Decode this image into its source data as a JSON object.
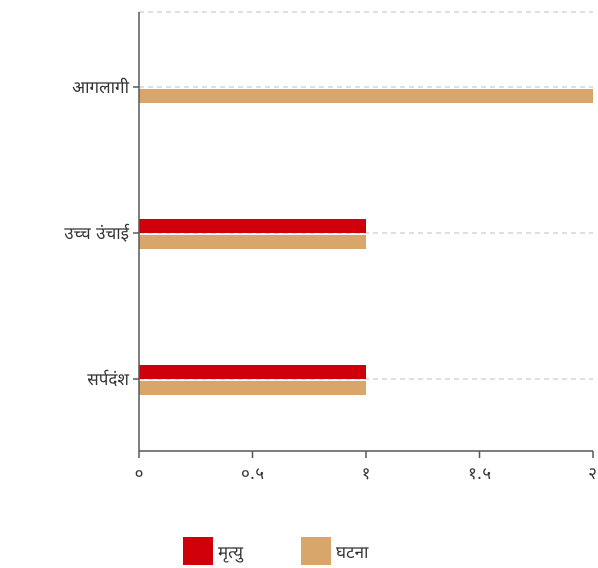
{
  "chart_data": {
    "type": "bar",
    "orientation": "horizontal",
    "categories": [
      "आगलागी",
      "उच्च उंचाई",
      "सर्पदंश"
    ],
    "series": [
      {
        "name": "मृत्यु",
        "values": [
          0,
          1,
          1
        ],
        "color": "#d0000b"
      },
      {
        "name": "घटना",
        "values": [
          2,
          1,
          1
        ],
        "color": "#d8a56a"
      }
    ],
    "x_ticks": [
      {
        "value": 0,
        "label": "०"
      },
      {
        "value": 0.5,
        "label": "०.५"
      },
      {
        "value": 1,
        "label": "१"
      },
      {
        "value": 1.5,
        "label": "१.५"
      },
      {
        "value": 2,
        "label": "२"
      }
    ],
    "xlim": [
      0,
      2
    ],
    "grid": true,
    "legend_position": "bottom-center",
    "title": "",
    "xlabel": "",
    "ylabel": ""
  }
}
